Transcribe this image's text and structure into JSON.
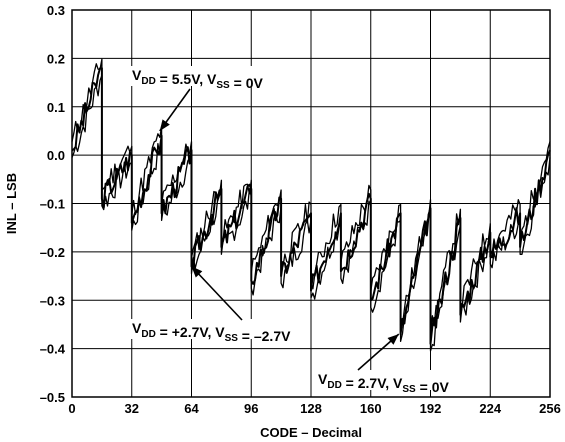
{
  "chart_data": {
    "type": "line",
    "title": "",
    "xlabel": "CODE – Decimal",
    "ylabel": "INL – LSB",
    "xlim": [
      0,
      256
    ],
    "ylim": [
      -0.5,
      0.3
    ],
    "xticks": [
      0,
      32,
      64,
      96,
      128,
      160,
      192,
      224,
      256
    ],
    "yticks": [
      0.3,
      0.2,
      0.1,
      0.0,
      -0.1,
      -0.2,
      -0.3,
      -0.4,
      -0.5
    ],
    "ytick_labels": [
      "0.3",
      "0.2",
      "0.1",
      "0.0",
      "–0.1",
      "–0.2",
      "–0.3",
      "–0.4",
      "–0.5"
    ],
    "grid": true,
    "annotations": [
      {
        "parts": [
          [
            "V",
            ""
          ],
          [
            "DD",
            "sub"
          ],
          [
            " = 5.5V, V",
            ""
          ],
          [
            "SS",
            "sub"
          ],
          [
            " = 0V",
            ""
          ]
        ],
        "target": [
          47,
          0.05
        ]
      },
      {
        "parts": [
          [
            "V",
            ""
          ],
          [
            "DD",
            "sub"
          ],
          [
            " = +2.7V, V",
            ""
          ],
          [
            "SS",
            "sub"
          ],
          [
            " = –2.7V",
            ""
          ]
        ],
        "target": [
          64,
          -0.23
        ]
      },
      {
        "parts": [
          [
            "V",
            ""
          ],
          [
            "DD",
            "sub"
          ],
          [
            " = 2.7V, V",
            ""
          ],
          [
            "SS",
            "sub"
          ],
          [
            " = 0V",
            ""
          ]
        ],
        "target": [
          175,
          -0.37
        ]
      }
    ],
    "sawtooth_anchors": [
      [
        0,
        0.01,
        0.0
      ],
      [
        16,
        0.18,
        -0.09
      ],
      [
        32,
        0.0,
        -0.14
      ],
      [
        48,
        0.04,
        -0.12
      ],
      [
        64,
        0.01,
        -0.23
      ],
      [
        80,
        -0.07,
        -0.19
      ],
      [
        96,
        -0.07,
        -0.26
      ],
      [
        112,
        -0.09,
        -0.25
      ],
      [
        128,
        -0.12,
        -0.28
      ],
      [
        144,
        -0.12,
        -0.24
      ],
      [
        160,
        -0.09,
        -0.3
      ],
      [
        176,
        -0.12,
        -0.37
      ],
      [
        192,
        -0.11,
        -0.39
      ],
      [
        208,
        -0.13,
        -0.33
      ],
      [
        224,
        -0.16,
        -0.21
      ],
      [
        240,
        -0.12,
        -0.19
      ],
      [
        256,
        0.01,
        0.01
      ]
    ],
    "series": [
      {
        "name": "",
        "offset": 0.0,
        "noise_seed": 3,
        "width": 2.0
      },
      {
        "name": "",
        "offset": -0.015,
        "noise_seed": 7,
        "width": 1.3
      },
      {
        "name": "",
        "offset": 0.018,
        "noise_seed": 11,
        "width": 1.3
      }
    ]
  }
}
